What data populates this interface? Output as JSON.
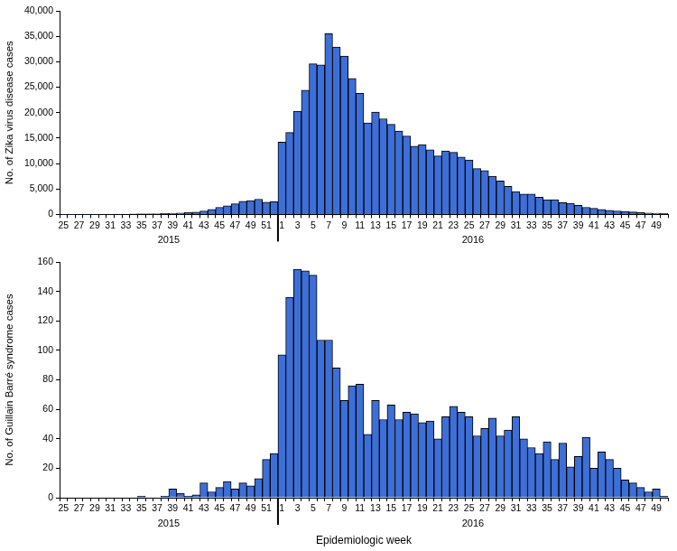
{
  "chart_data": [
    {
      "type": "bar",
      "y_label": "No. of Zika virus disease cases",
      "categories": [
        "25",
        null,
        "27",
        null,
        "29",
        null,
        "31",
        null,
        "33",
        null,
        "35",
        null,
        "37",
        null,
        "39",
        null,
        "41",
        null,
        "43",
        null,
        "45",
        null,
        "47",
        null,
        "49",
        null,
        "51",
        null,
        "1",
        null,
        "3",
        null,
        "5",
        null,
        "7",
        null,
        "9",
        null,
        "11",
        null,
        "13",
        null,
        "15",
        null,
        "17",
        null,
        "19",
        null,
        "21",
        null,
        "23",
        null,
        "25",
        null,
        "27",
        null,
        "29",
        null,
        "31",
        null,
        "33",
        null,
        "35",
        null,
        "37",
        null,
        "39",
        null,
        "41",
        null,
        "43",
        null,
        "45",
        null,
        "47",
        null,
        "49",
        null
      ],
      "x_groups": [
        {
          "label": "2015",
          "count": 28
        },
        {
          "label": "2016",
          "count": 50
        }
      ],
      "values": [
        10,
        10,
        20,
        30,
        30,
        40,
        50,
        60,
        70,
        90,
        100,
        120,
        150,
        200,
        250,
        300,
        350,
        450,
        700,
        1000,
        1400,
        1700,
        2100,
        2600,
        2700,
        3000,
        2400,
        2500,
        14200,
        16100,
        20300,
        24400,
        29600,
        29400,
        35500,
        32900,
        31100,
        26700,
        23800,
        18000,
        20100,
        18800,
        17700,
        16400,
        15400,
        13400,
        13700,
        12700,
        11500,
        12500,
        12200,
        11300,
        10700,
        9000,
        8600,
        7500,
        6600,
        5500,
        4500,
        4000,
        4000,
        3400,
        2900,
        2900,
        2300,
        2200,
        1800,
        1400,
        1200,
        1000,
        800,
        700,
        600,
        500,
        400,
        300,
        250,
        200
      ],
      "color": "#3d6fd9",
      "ylim": [
        0,
        40000
      ],
      "yticks": [
        0,
        {
          "value": 5000,
          "label": "5,000"
        },
        {
          "value": 10000,
          "label": "10,000"
        },
        {
          "value": 15000,
          "label": "15,000"
        },
        {
          "value": 20000,
          "label": "20,000"
        },
        {
          "value": 25000,
          "label": "25,000"
        },
        {
          "value": 30000,
          "label": "30,000"
        },
        {
          "value": 35000,
          "label": "35,000"
        },
        {
          "value": 40000,
          "label": "40,000"
        }
      ],
      "grid": false
    },
    {
      "type": "bar",
      "y_label": "No. of Guillain Barré syndrome cases",
      "x_label": "Epidemiologic week",
      "categories": [
        "25",
        null,
        "27",
        null,
        "29",
        null,
        "31",
        null,
        "33",
        null,
        "35",
        null,
        "37",
        null,
        "39",
        null,
        "41",
        null,
        "43",
        null,
        "45",
        null,
        "47",
        null,
        "49",
        null,
        "51",
        null,
        "1",
        null,
        "3",
        null,
        "5",
        null,
        "7",
        null,
        "9",
        null,
        "11",
        null,
        "13",
        null,
        "15",
        null,
        "17",
        null,
        "19",
        null,
        "21",
        null,
        "23",
        null,
        "25",
        null,
        "27",
        null,
        "29",
        null,
        "31",
        null,
        "33",
        null,
        "35",
        null,
        "37",
        null,
        "39",
        null,
        "41",
        null,
        "43",
        null,
        "45",
        null,
        "47",
        null,
        "49",
        null
      ],
      "x_groups": [
        {
          "label": "2015",
          "count": 28
        },
        {
          "label": "2016",
          "count": 50
        }
      ],
      "values": [
        0,
        0,
        0,
        0,
        0,
        0,
        0,
        0,
        0,
        0,
        1,
        0,
        0,
        1,
        6,
        3,
        1,
        2,
        10,
        4,
        7,
        11,
        6,
        10,
        8,
        13,
        26,
        30,
        97,
        136,
        155,
        154,
        151,
        107,
        107,
        88,
        66,
        76,
        77,
        43,
        66,
        53,
        63,
        53,
        58,
        57,
        51,
        52,
        40,
        55,
        62,
        58,
        55,
        42,
        47,
        54,
        42,
        46,
        55,
        40,
        34,
        30,
        38,
        26,
        37,
        21,
        28,
        41,
        20,
        31,
        26,
        20,
        12,
        10,
        7,
        4,
        6,
        1
      ],
      "color": "#3d6fd9",
      "ylim": [
        0,
        160
      ],
      "yticks": [
        0,
        20,
        40,
        60,
        80,
        100,
        120,
        140,
        160
      ],
      "grid": false
    }
  ]
}
